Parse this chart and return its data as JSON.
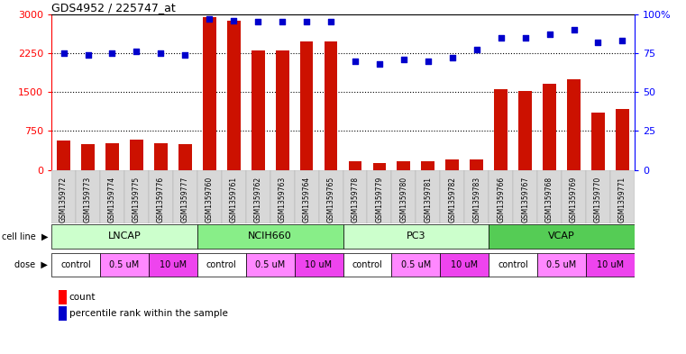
{
  "title": "GDS4952 / 225747_at",
  "samples": [
    "GSM1359772",
    "GSM1359773",
    "GSM1359774",
    "GSM1359775",
    "GSM1359776",
    "GSM1359777",
    "GSM1359760",
    "GSM1359761",
    "GSM1359762",
    "GSM1359763",
    "GSM1359764",
    "GSM1359765",
    "GSM1359778",
    "GSM1359779",
    "GSM1359780",
    "GSM1359781",
    "GSM1359782",
    "GSM1359783",
    "GSM1359766",
    "GSM1359767",
    "GSM1359768",
    "GSM1359769",
    "GSM1359770",
    "GSM1359771"
  ],
  "counts": [
    560,
    490,
    510,
    590,
    520,
    490,
    2950,
    2880,
    2300,
    2300,
    2480,
    2480,
    170,
    135,
    175,
    165,
    195,
    210,
    1560,
    1520,
    1660,
    1750,
    1100,
    1170
  ],
  "percentiles": [
    75,
    74,
    75,
    76,
    75,
    74,
    97,
    96,
    95,
    95,
    95,
    95,
    70,
    68,
    71,
    70,
    72,
    77,
    85,
    85,
    87,
    90,
    82,
    83
  ],
  "cell_lines": [
    {
      "label": "LNCAP",
      "start": 0,
      "end": 6,
      "color": "#ccffcc"
    },
    {
      "label": "NCIH660",
      "start": 6,
      "end": 12,
      "color": "#88ee88"
    },
    {
      "label": "PC3",
      "start": 12,
      "end": 18,
      "color": "#ccffcc"
    },
    {
      "label": "VCAP",
      "start": 18,
      "end": 24,
      "color": "#55cc55"
    }
  ],
  "doses": [
    {
      "label": "control",
      "start": 0,
      "end": 2,
      "color": "#ffffff"
    },
    {
      "label": "0.5 uM",
      "start": 2,
      "end": 4,
      "color": "#ff88ff"
    },
    {
      "label": "10 uM",
      "start": 4,
      "end": 6,
      "color": "#ee44ee"
    },
    {
      "label": "control",
      "start": 6,
      "end": 8,
      "color": "#ffffff"
    },
    {
      "label": "0.5 uM",
      "start": 8,
      "end": 10,
      "color": "#ff88ff"
    },
    {
      "label": "10 uM",
      "start": 10,
      "end": 12,
      "color": "#ee44ee"
    },
    {
      "label": "control",
      "start": 12,
      "end": 14,
      "color": "#ffffff"
    },
    {
      "label": "0.5 uM",
      "start": 14,
      "end": 16,
      "color": "#ff88ff"
    },
    {
      "label": "10 uM",
      "start": 16,
      "end": 18,
      "color": "#ee44ee"
    },
    {
      "label": "control",
      "start": 18,
      "end": 20,
      "color": "#ffffff"
    },
    {
      "label": "0.5 uM",
      "start": 20,
      "end": 22,
      "color": "#ff88ff"
    },
    {
      "label": "10 uM",
      "start": 22,
      "end": 24,
      "color": "#ee44ee"
    }
  ],
  "bar_color": "#cc1100",
  "dot_color": "#0000cc",
  "left_ylim": [
    0,
    3000
  ],
  "right_ylim": [
    0,
    100
  ],
  "left_yticks": [
    0,
    750,
    1500,
    2250,
    3000
  ],
  "left_yticklabels": [
    "0",
    "750",
    "1500",
    "2250",
    "3000"
  ],
  "right_yticks": [
    0,
    25,
    50,
    75,
    100
  ],
  "right_yticklabels": [
    "0",
    "25",
    "50",
    "75",
    "100%"
  ],
  "grid_values": [
    750,
    1500,
    2250
  ],
  "bar_width": 0.55,
  "fig_width": 7.61,
  "fig_height": 3.93,
  "dpi": 100
}
